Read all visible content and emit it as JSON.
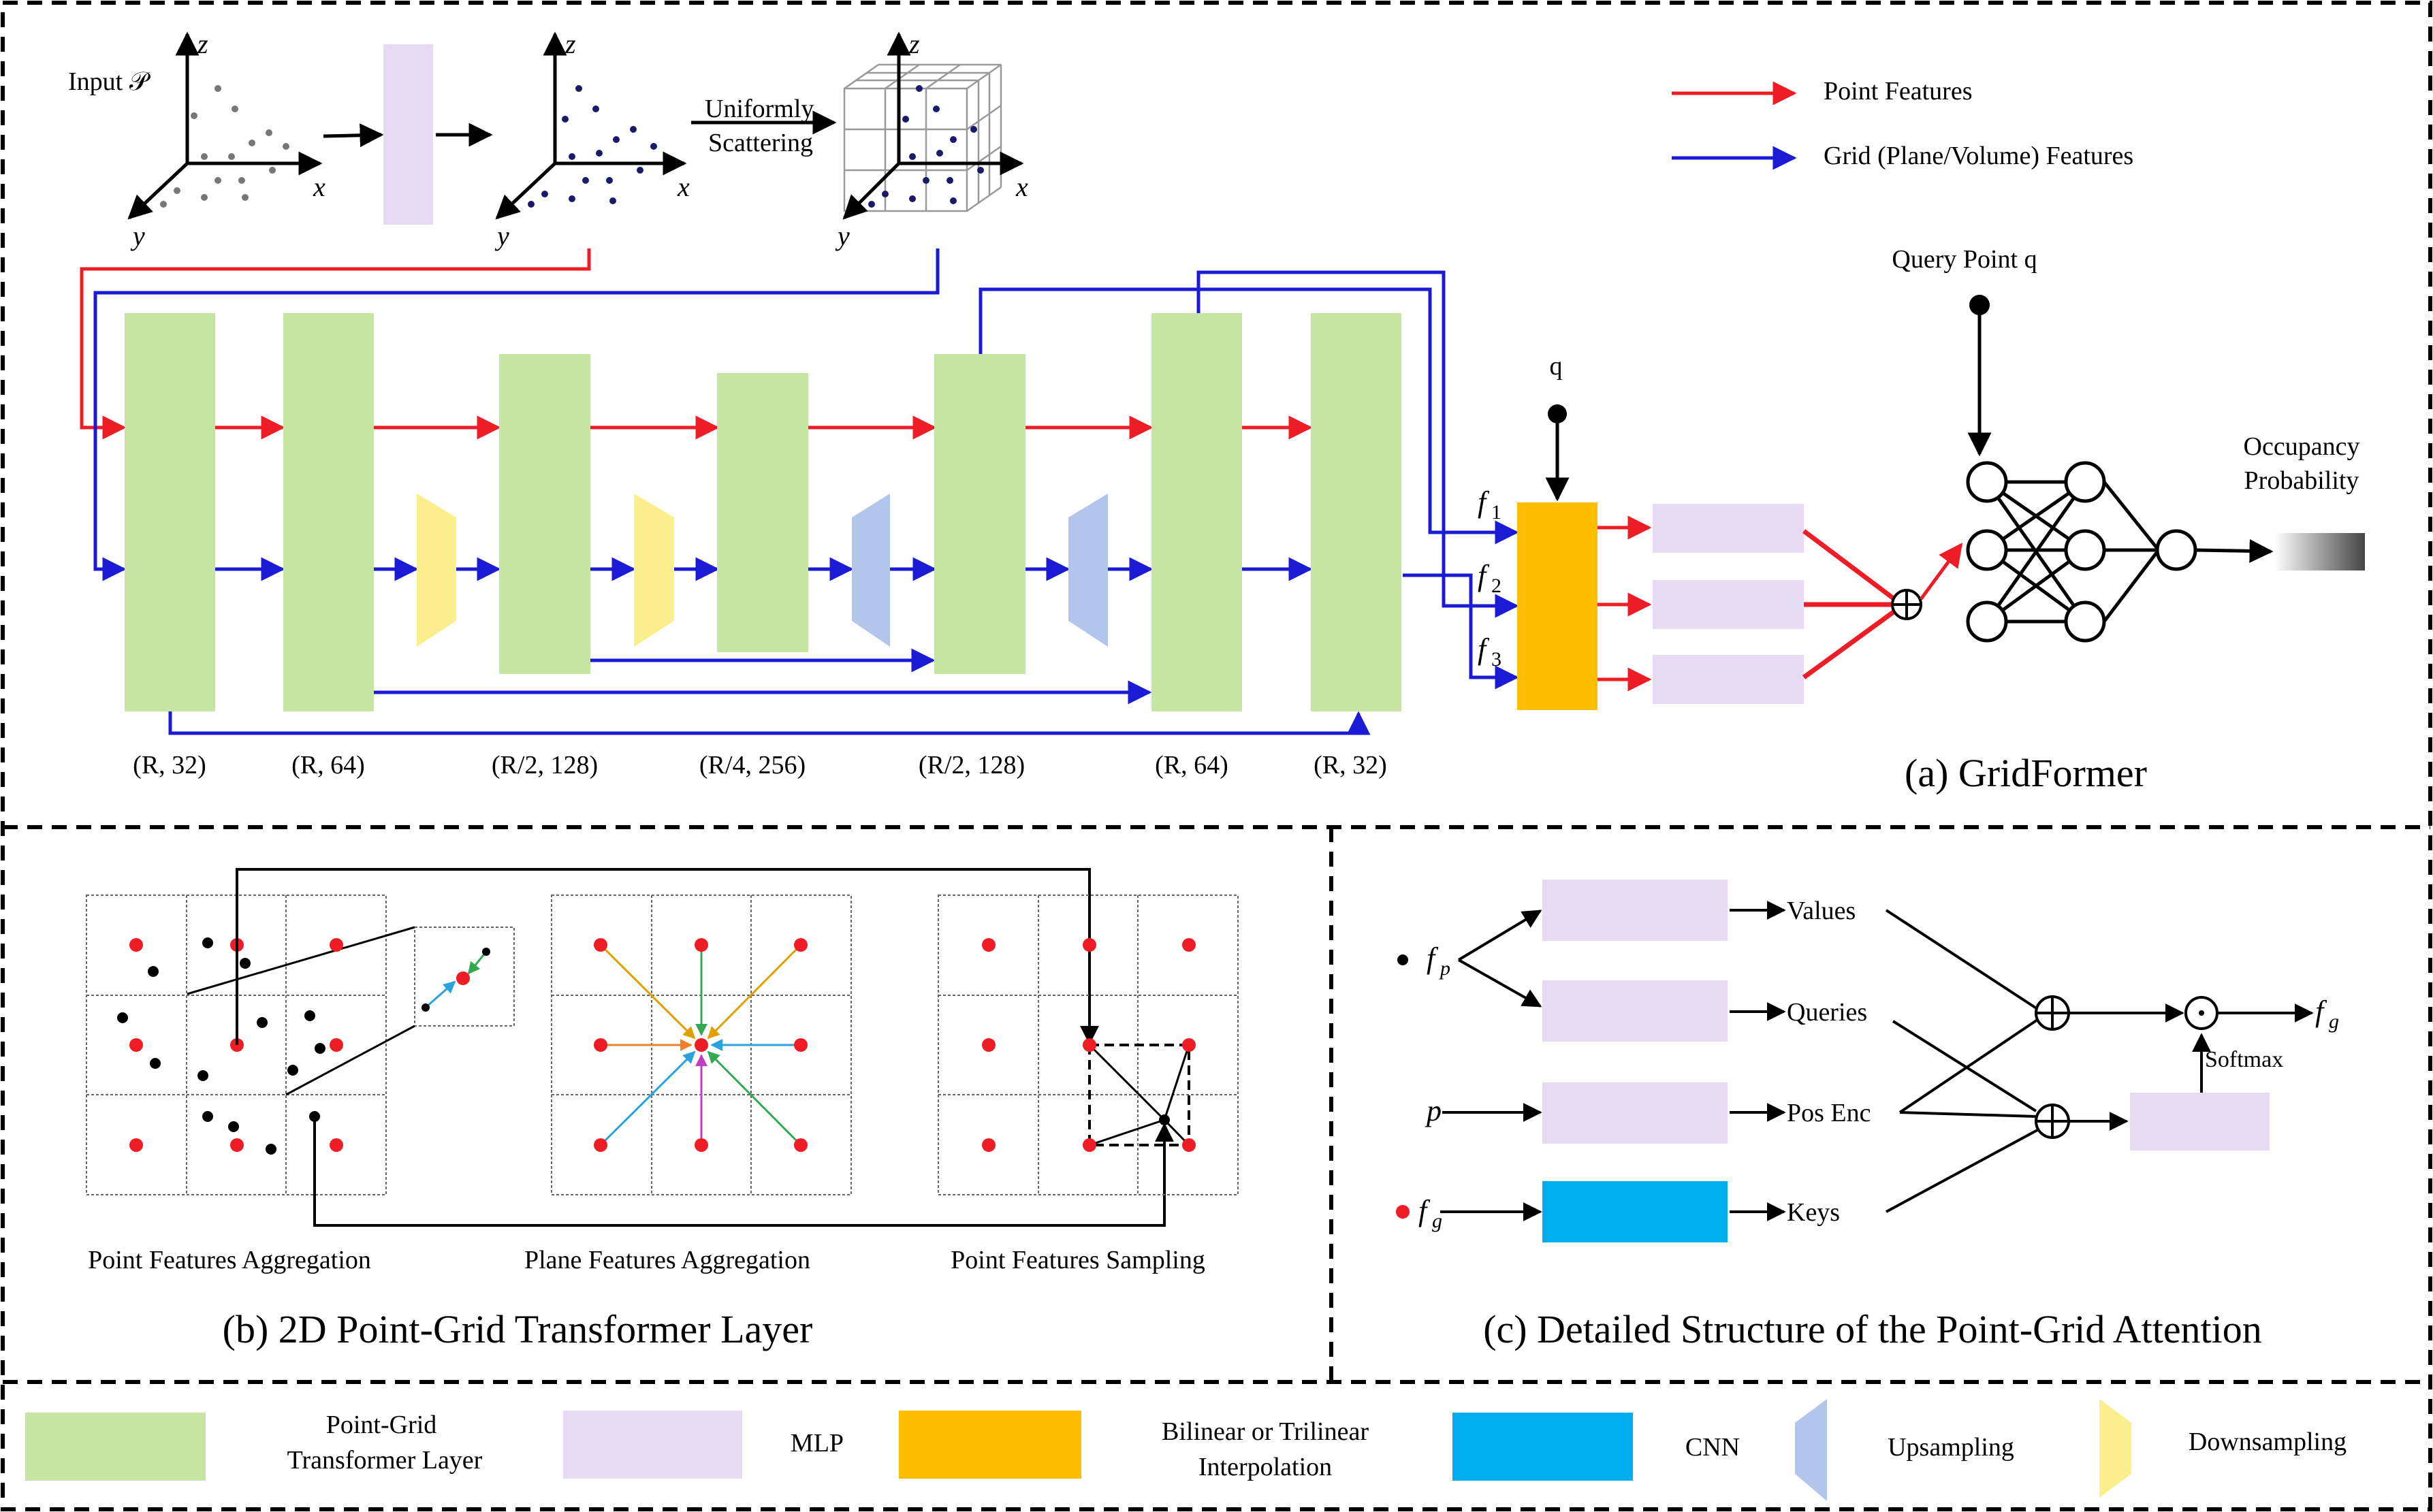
{
  "colors": {
    "point_feature": "#ee1c24",
    "grid_feature": "#1b1bd6",
    "transformer_layer": "#c6e5a3",
    "mlp": "#e6dbf2",
    "interpolation": "#ffbf00",
    "cnn": "#00aeef",
    "upsampling": "#b4c5ec",
    "downsampling": "#fbee8d"
  },
  "panel_a": {
    "input_label": "Input 𝒫",
    "scatter_label_1": "Uniformly",
    "scatter_label_2": "Scattering",
    "axis_x": "x",
    "axis_y": "y",
    "axis_z": "z",
    "legend_point": "Point Features",
    "legend_grid": "Grid (Plane/Volume) Features",
    "query_label": "Query Point q",
    "q_label": "q",
    "f1": "f",
    "f1_sub": "1",
    "f2": "f",
    "f2_sub": "2",
    "f3": "f",
    "f3_sub": "3",
    "output_label_1": "Occupancy",
    "output_label_2": "Probability",
    "stage_labels": [
      "(R, 32)",
      "(R, 64)",
      "(R/2, 128)",
      "(R/4, 256)",
      "(R/2, 128)",
      "(R, 64)",
      "(R, 32)"
    ],
    "title": "(a) GridFormer"
  },
  "panel_b": {
    "sub1": "Point Features Aggregation",
    "sub2": "Plane Features Aggregation",
    "sub3": "Point Features Sampling",
    "title": "(b) 2D Point-Grid Transformer Layer"
  },
  "panel_c": {
    "fp": "f",
    "fp_sub": "p",
    "p": "p",
    "fg": "f",
    "fg_sub": "g",
    "out_f": "f",
    "out_sub": "g",
    "values": "Values",
    "queries": "Queries",
    "pos_enc": "Pos Enc",
    "keys": "Keys",
    "softmax": "Softmax",
    "title": "(c) Detailed Structure of the Point-Grid Attention"
  },
  "legend": {
    "transformer_1": "Point-Grid",
    "transformer_2": "Transformer Layer",
    "mlp": "MLP",
    "interp_1": "Bilinear or Trilinear",
    "interp_2": "Interpolation",
    "cnn": "CNN",
    "upsampling": "Upsampling",
    "downsampling": "Downsampling"
  }
}
